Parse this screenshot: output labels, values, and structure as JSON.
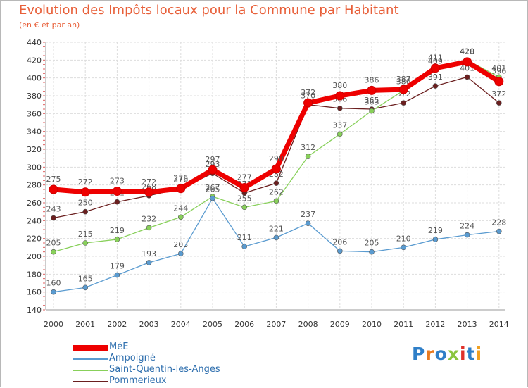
{
  "header": {
    "title": "Evolution des Impôts locaux pour la Commune par Habitant",
    "subtitle": "(en € et par an)"
  },
  "chart_data": {
    "type": "line",
    "title": "Evolution des Impôts locaux pour la Commune par Habitant",
    "subtitle": "(en € et par an)",
    "xlabel": "",
    "ylabel": "",
    "x": [
      "2000",
      "2001",
      "2002",
      "2003",
      "2004",
      "2005",
      "2006",
      "2007",
      "2008",
      "2009",
      "2010",
      "2011",
      "2012",
      "2013",
      "2014"
    ],
    "ylim": [
      140,
      440
    ],
    "yticks": [
      140,
      160,
      180,
      200,
      220,
      240,
      260,
      280,
      300,
      320,
      340,
      360,
      380,
      400,
      420,
      440
    ],
    "grid": true,
    "legend_position": "bottom-left",
    "series": [
      {
        "name": "Pommerieux",
        "color": "#6b1f1f",
        "values": [
          243,
          250,
          261,
          268,
          276,
          293,
          271,
          282,
          370,
          366,
          365,
          372,
          391,
          401,
          372
        ]
      },
      {
        "name": "Saint-Quentin-les-Anges",
        "color": "#88d05a",
        "values": [
          205,
          215,
          219,
          232,
          244,
          267,
          255,
          262,
          312,
          337,
          363,
          386,
          409,
          420,
          401
        ]
      },
      {
        "name": "Ampoigné",
        "color": "#5a9bd0",
        "values": [
          160,
          165,
          179,
          193,
          203,
          265,
          211,
          221,
          237,
          206,
          205,
          210,
          219,
          224,
          228
        ]
      },
      {
        "name": "MéE",
        "color": "#ee0000",
        "values": [
          275,
          272,
          273,
          272,
          276,
          297,
          277,
          298,
          372,
          380,
          386,
          387,
          411,
          418,
          396
        ]
      }
    ]
  },
  "legend": {
    "items": [
      {
        "label": "MéE",
        "color": "#ee0000"
      },
      {
        "label": "Ampoigné",
        "color": "#5a9bd0"
      },
      {
        "label": "Saint-Quentin-les-Anges",
        "color": "#88d05a"
      },
      {
        "label": "Pommerieux",
        "color": "#6b1f1f"
      }
    ]
  },
  "logo": {
    "text": "Proxiti",
    "colors": [
      "#2f7fc8",
      "#e87a1f",
      "#2f7fc8",
      "#8bc53f",
      "#e0302a",
      "#2f7fc8",
      "#f0a020"
    ]
  }
}
